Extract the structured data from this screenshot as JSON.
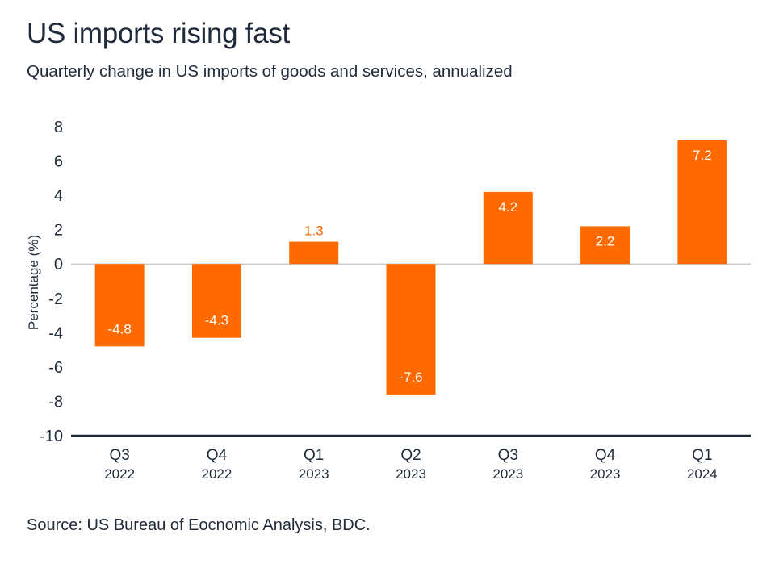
{
  "header": {
    "title": "US imports rising fast",
    "subtitle": "Quarterly change in US imports of goods and services, annualized"
  },
  "footer": {
    "source": "Source: US Bureau of Eocnomic Analysis, BDC."
  },
  "colors": {
    "bar": "#ff6a00",
    "label_inside": "#ffffff",
    "label_outside": "#ff6a00",
    "zero_line": "#cccccc",
    "axis_line": "#1f2a3a"
  },
  "chart_data": {
    "type": "bar",
    "categories": [
      {
        "quarter": "Q3",
        "year": "2022"
      },
      {
        "quarter": "Q4",
        "year": "2022"
      },
      {
        "quarter": "Q1",
        "year": "2023"
      },
      {
        "quarter": "Q2",
        "year": "2023"
      },
      {
        "quarter": "Q3",
        "year": "2023"
      },
      {
        "quarter": "Q4",
        "year": "2023"
      },
      {
        "quarter": "Q1",
        "year": "2024"
      }
    ],
    "values": [
      -4.8,
      -4.3,
      1.3,
      -7.6,
      4.2,
      2.2,
      7.2
    ],
    "value_labels": [
      "-4.8",
      "-4.3",
      "1.3",
      "-7.6",
      "4.2",
      "2.2",
      "7.2"
    ],
    "ylabel": "Percentage (%)",
    "ylim": [
      -10,
      8
    ],
    "yticks": [
      8,
      6,
      4,
      2,
      0,
      -2,
      -4,
      -6,
      -8,
      -10
    ],
    "ytick_labels": [
      "8",
      "6",
      "4",
      "2",
      "0",
      "-2",
      "-4",
      "-6",
      "-8",
      "-10"
    ],
    "grid": false,
    "legend": "none"
  }
}
